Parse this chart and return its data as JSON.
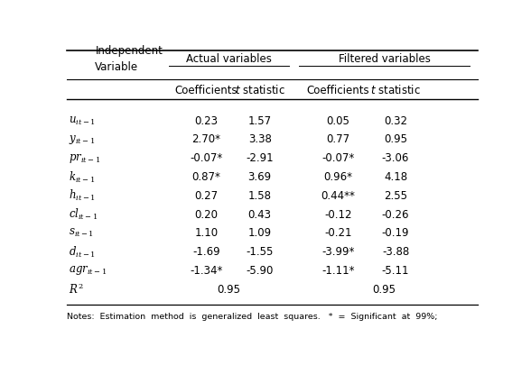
{
  "header_top_left": "Independent\nVariable",
  "header_actual": "Actual variables",
  "header_filtered": "Filtered variables",
  "subheader_coeff": "Coefficients",
  "subheader_t": "t statistic",
  "rows": [
    {
      "label": "$u_{it-1}$",
      "ac": "0.23",
      "at": "1.57",
      "fc": "0.05",
      "ft": "0.32"
    },
    {
      "label": "$y_{it-1}$",
      "ac": "2.70*",
      "at": "3.38",
      "fc": "0.77",
      "ft": "0.95"
    },
    {
      "label": "$pr_{it-1}$",
      "ac": "-0.07*",
      "at": "-2.91",
      "fc": "-0.07*",
      "ft": "-3.06"
    },
    {
      "label": "$k_{it-1}$",
      "ac": "0.87*",
      "at": "3.69",
      "fc": "0.96*",
      "ft": "4.18"
    },
    {
      "label": "$h_{it-1}$",
      "ac": "0.27",
      "at": "1.58",
      "fc": "0.44**",
      "ft": "2.55"
    },
    {
      "label": "$cl_{it-1}$",
      "ac": "0.20",
      "at": "0.43",
      "fc": "-0.12",
      "ft": "-0.26"
    },
    {
      "label": "$s_{it-1}$",
      "ac": "1.10",
      "at": "1.09",
      "fc": "-0.21",
      "ft": "-0.19"
    },
    {
      "label": "$d_{it-1}$",
      "ac": "-1.69",
      "at": "-1.55",
      "fc": "-3.99*",
      "ft": "-3.88"
    },
    {
      "label": "$agr_{it-1}$",
      "ac": "-1.34*",
      "at": "-5.90",
      "fc": "-1.11*",
      "ft": "-5.11"
    },
    {
      "label": "$R^2$",
      "ac": "",
      "at": "",
      "fc": "",
      "ft": "",
      "r2": true
    }
  ],
  "r2_ac_val": "0.95",
  "r2_fc_val": "0.95",
  "notes": "Notes:  Estimation  method  is  generalized  least  squares.   *  =  Significant  at  99%;",
  "bg_color": "#ffffff",
  "text_color": "#000000",
  "fs": 8.5,
  "fs_notes": 6.8
}
